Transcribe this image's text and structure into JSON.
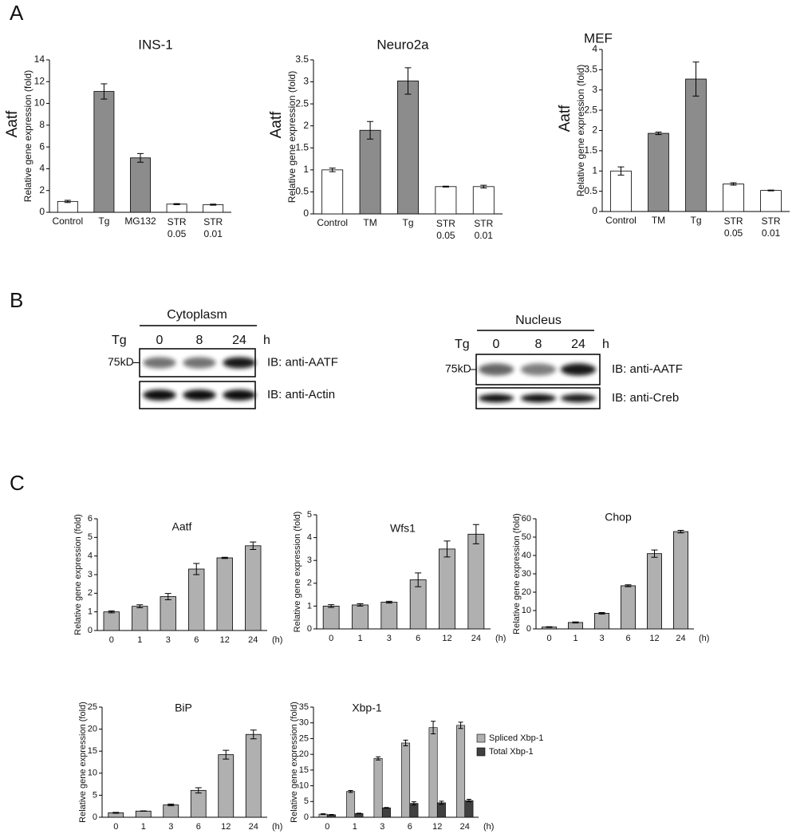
{
  "panels": [
    "A",
    "B",
    "C"
  ],
  "chart_data": [
    {
      "type": "bar",
      "title": "INS-1",
      "y_label": "Relative gene expression (fold)",
      "y_label_large": "Aatf",
      "categories": [
        "Control",
        "Tg",
        "MG132",
        [
          "STR",
          "0.05"
        ],
        [
          "STR",
          "0.01"
        ]
      ],
      "values": [
        1.0,
        11.1,
        5.0,
        0.75,
        0.7
      ],
      "errors": [
        0.1,
        0.7,
        0.4,
        0.05,
        0.05
      ],
      "colors": [
        "#ffffff",
        "#8c8c8c",
        "#8c8c8c",
        "#ffffff",
        "#ffffff"
      ],
      "ylim": [
        0,
        14
      ],
      "yticks": [
        0,
        2,
        4,
        6,
        8,
        10,
        12,
        14
      ]
    },
    {
      "type": "bar",
      "title": "Neuro2a",
      "y_label": "Relative gene expression (fold)",
      "y_label_large": "Aatf",
      "categories": [
        "Control",
        "TM",
        "Tg",
        [
          "STR",
          "0.05"
        ],
        [
          "STR",
          "0.01"
        ]
      ],
      "values": [
        1.0,
        1.9,
        3.02,
        0.62,
        0.62
      ],
      "errors": [
        0.04,
        0.2,
        0.3,
        0.01,
        0.03
      ],
      "colors": [
        "#ffffff",
        "#8c8c8c",
        "#8c8c8c",
        "#ffffff",
        "#ffffff"
      ],
      "ylim": [
        0,
        3.5
      ],
      "yticks": [
        0,
        0.5,
        1,
        1.5,
        2,
        2.5,
        3,
        3.5
      ]
    },
    {
      "type": "bar",
      "title": "MEF",
      "y_label": "Relative gene expression (fold)",
      "y_label_large": "Aatf",
      "categories": [
        "Control",
        "TM",
        "Tg",
        [
          "STR",
          "0.05"
        ],
        [
          "STR",
          "0.01"
        ]
      ],
      "values": [
        1.0,
        1.93,
        3.27,
        0.68,
        0.52
      ],
      "errors": [
        0.1,
        0.03,
        0.42,
        0.03,
        0.01
      ],
      "colors": [
        "#ffffff",
        "#8c8c8c",
        "#8c8c8c",
        "#ffffff",
        "#ffffff"
      ],
      "ylim": [
        0,
        4
      ],
      "yticks": [
        0,
        0.5,
        1,
        1.5,
        2,
        2.5,
        3,
        3.5,
        4
      ]
    },
    {
      "type": "bar",
      "title": "Aatf",
      "y_label": "Relative gene expression (fold)",
      "x_unit": "(h)",
      "categories": [
        "0",
        "1",
        "3",
        "6",
        "12",
        "24"
      ],
      "values": [
        1.0,
        1.3,
        1.82,
        3.3,
        3.9,
        4.55
      ],
      "errors": [
        0.05,
        0.08,
        0.17,
        0.3,
        0.03,
        0.2
      ],
      "color": "#b0b0b0",
      "ylim": [
        0,
        6
      ],
      "yticks": [
        0,
        1,
        2,
        3,
        4,
        5,
        6
      ]
    },
    {
      "type": "bar",
      "title": "Wfs1",
      "y_label": "Relative gene expression (fold)",
      "x_unit": "(h)",
      "categories": [
        "0",
        "1",
        "3",
        "6",
        "12",
        "24"
      ],
      "values": [
        1.0,
        1.05,
        1.17,
        2.15,
        3.5,
        4.15
      ],
      "errors": [
        0.06,
        0.05,
        0.04,
        0.3,
        0.35,
        0.42
      ],
      "color": "#b0b0b0",
      "ylim": [
        0,
        5
      ],
      "yticks": [
        0,
        1,
        2,
        3,
        4,
        5
      ]
    },
    {
      "type": "bar",
      "title": "Chop",
      "y_label": "Relative gene expression (fold)",
      "x_unit": "(h)",
      "categories": [
        "0",
        "1",
        "3",
        "6",
        "12",
        "24"
      ],
      "values": [
        1.0,
        3.5,
        8.5,
        23.5,
        41,
        53
      ],
      "errors": [
        0.2,
        0.3,
        0.4,
        0.5,
        2,
        0.7
      ],
      "color": "#b0b0b0",
      "ylim": [
        0,
        60
      ],
      "yticks": [
        0,
        10,
        20,
        30,
        40,
        50,
        60
      ]
    },
    {
      "type": "bar",
      "title": "BiP",
      "y_label": "Relative gene expression (fold)",
      "x_unit": "(h)",
      "categories": [
        "0",
        "1",
        "3",
        "6",
        "12",
        "24"
      ],
      "values": [
        1.0,
        1.4,
        2.8,
        6.1,
        14.2,
        18.8
      ],
      "errors": [
        0.1,
        0.05,
        0.2,
        0.6,
        1,
        1
      ],
      "color": "#b0b0b0",
      "ylim": [
        0,
        25
      ],
      "yticks": [
        0,
        5,
        10,
        15,
        20,
        25
      ]
    },
    {
      "type": "bar",
      "title": "Xbp-1",
      "y_label": "Relative gene expression (fold)",
      "x_unit": "(h)",
      "categories": [
        "0",
        "1",
        "3",
        "6",
        "12",
        "24"
      ],
      "series": [
        {
          "name": "Spliced Xbp-1",
          "color": "#b0b0b0",
          "values": [
            1.0,
            8.2,
            18.7,
            23.6,
            28.5,
            29.2
          ],
          "errors": [
            0.1,
            0.3,
            0.5,
            0.9,
            2,
            1
          ]
        },
        {
          "name": "Total Xbp-1",
          "color": "#404040",
          "values": [
            0.8,
            1.2,
            3.0,
            4.4,
            4.6,
            5.3
          ],
          "errors": [
            0.1,
            0.1,
            0.1,
            0.5,
            0.5,
            0.4
          ]
        }
      ],
      "ylim": [
        0,
        35
      ],
      "yticks": [
        0,
        5,
        10,
        15,
        20,
        25,
        30,
        35
      ]
    }
  ],
  "blots": [
    {
      "fraction": "Cytoplasm",
      "treatment": "Tg",
      "lanes": [
        "0",
        "8",
        "24"
      ],
      "unit": "h",
      "marker": "75kD",
      "rows": [
        "IB: anti-AATF",
        "IB: anti-Actin"
      ]
    },
    {
      "fraction": "Nucleus",
      "treatment": "Tg",
      "lanes": [
        "0",
        "8",
        "24"
      ],
      "unit": "h",
      "marker": "75kD",
      "rows": [
        "IB: anti-AATF",
        "IB: anti-Creb"
      ]
    }
  ]
}
